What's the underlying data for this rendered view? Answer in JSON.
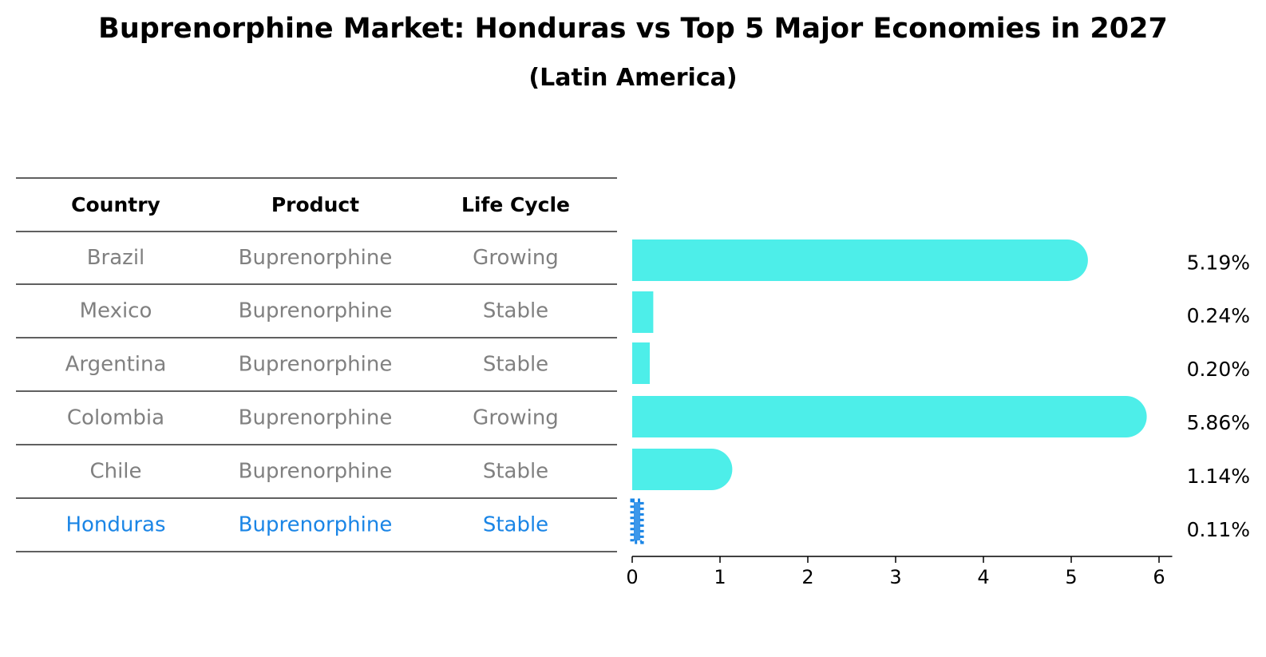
{
  "title": "Buprenorphine Market: Honduras vs Top 5 Major Economies in 2027",
  "subtitle": "(Latin America)",
  "colors": {
    "bar": "#4deee9",
    "highlight": "#1a85e6",
    "muted_text": "#808080"
  },
  "table": {
    "headers": [
      "Country",
      "Product",
      "Life Cycle"
    ],
    "rows": [
      {
        "country": "Brazil",
        "product": "Buprenorphine",
        "life_cycle": "Growing"
      },
      {
        "country": "Mexico",
        "product": "Buprenorphine",
        "life_cycle": "Stable"
      },
      {
        "country": "Argentina",
        "product": "Buprenorphine",
        "life_cycle": "Stable"
      },
      {
        "country": "Colombia",
        "product": "Buprenorphine",
        "life_cycle": "Growing"
      },
      {
        "country": "Chile",
        "product": "Buprenorphine",
        "life_cycle": "Stable"
      },
      {
        "country": "Honduras",
        "product": "Buprenorphine",
        "life_cycle": "Stable",
        "highlight": true
      }
    ]
  },
  "chart_data": {
    "type": "bar",
    "orientation": "horizontal",
    "categories": [
      "Brazil",
      "Mexico",
      "Argentina",
      "Colombia",
      "Chile",
      "Honduras"
    ],
    "values": [
      5.19,
      0.24,
      0.2,
      5.86,
      1.14,
      0.11
    ],
    "value_labels": [
      "5.19%",
      "0.24%",
      "0.20%",
      "5.86%",
      "1.14%",
      "0.11%"
    ],
    "xlim": [
      0,
      6.15
    ],
    "xticks": [
      0,
      1,
      2,
      3,
      4,
      5,
      6
    ],
    "highlight": "Honduras",
    "grid": false
  }
}
